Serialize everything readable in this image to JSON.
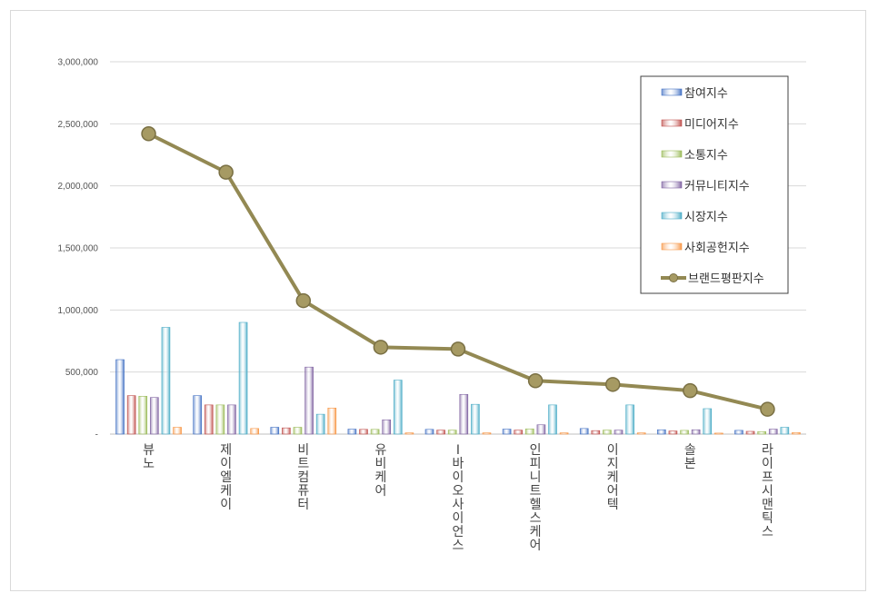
{
  "chart_data": {
    "type": "bar",
    "ylim": [
      0,
      3000000
    ],
    "yticks": [
      {
        "v": 0,
        "label": "-"
      },
      {
        "v": 500000,
        "label": "500,000"
      },
      {
        "v": 1000000,
        "label": "1,000,000"
      },
      {
        "v": 1500000,
        "label": "1,500,000"
      },
      {
        "v": 2000000,
        "label": "2,000,000"
      },
      {
        "v": 2500000,
        "label": "2,500,000"
      },
      {
        "v": 3000000,
        "label": "3,000,000"
      }
    ],
    "grid": true,
    "legend_position": "top-right",
    "categories": [
      "뷰노",
      "제이엘케이",
      "비트컴퓨터",
      "유비케어",
      "I바이오사이언스",
      "인피니트헬스케어",
      "이지케어텍",
      "솔본",
      "라이프시맨틱스"
    ],
    "series": [
      {
        "name": "참여지수",
        "type": "bar",
        "color": "#4472C4",
        "values": [
          600000,
          310000,
          55000,
          40000,
          38000,
          40000,
          45000,
          35000,
          30000
        ]
      },
      {
        "name": "미디어지수",
        "type": "bar",
        "color": "#C0504D",
        "values": [
          310000,
          235000,
          50000,
          38000,
          32000,
          32000,
          28000,
          25000,
          22000
        ]
      },
      {
        "name": "소통지수",
        "type": "bar",
        "color": "#9BBB59",
        "values": [
          305000,
          235000,
          55000,
          38000,
          32000,
          42000,
          32000,
          30000,
          20000
        ]
      },
      {
        "name": "커뮤니티지수",
        "type": "bar",
        "color": "#8064A2",
        "values": [
          295000,
          235000,
          540000,
          115000,
          320000,
          75000,
          32000,
          35000,
          40000
        ]
      },
      {
        "name": "시장지수",
        "type": "bar",
        "color": "#4BACC6",
        "values": [
          860000,
          900000,
          160000,
          435000,
          240000,
          235000,
          235000,
          205000,
          55000
        ]
      },
      {
        "name": "사회공헌지수",
        "type": "bar",
        "color": "#F79646",
        "values": [
          55000,
          45000,
          210000,
          10000,
          10000,
          10000,
          10000,
          8000,
          12000
        ]
      },
      {
        "name": "브랜드평판지수",
        "type": "line",
        "color": "#938953",
        "values": [
          2420000,
          2110000,
          1075000,
          700000,
          685000,
          430000,
          400000,
          350000,
          200000
        ]
      }
    ]
  }
}
